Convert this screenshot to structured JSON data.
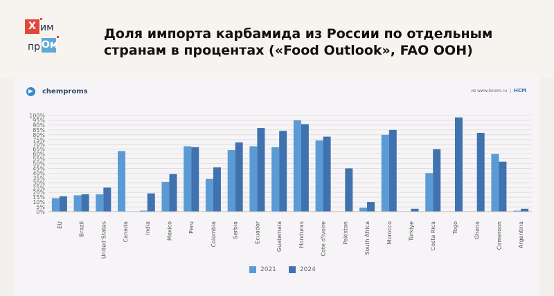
{
  "header": {
    "logo_line1": "Х",
    "logo_line1_rest": "им",
    "logo_line2_rest": "пр",
    "logo_line2": "Ом",
    "title": "Доля импорта карбамида из России по отдельным странам в процентах («Food Outlook», FAO ООН)"
  },
  "brand": {
    "name": "chemproms",
    "icon": "telegram-icon"
  },
  "source": {
    "site": "из www.iknom.ru",
    "sep": "|",
    "mark": "НСМ"
  },
  "colors": {
    "s2021": "#5b9bd5",
    "s2024": "#3f72ae",
    "accent": "#e3473b"
  },
  "chart_data": {
    "type": "bar",
    "categories": [
      "EU",
      "Brazil",
      "United States",
      "Canada",
      "India",
      "Mexico",
      "Peru",
      "Colombia",
      "Serbia",
      "Ecuador",
      "Guatemala",
      "Honduras",
      "Cote d'Ivoire",
      "Pakistan",
      "South Africa",
      "Morocco",
      "Türkiye",
      "Costa Rica",
      "Togo",
      "Ghana",
      "Cameroon",
      "Argentina"
    ],
    "series": [
      {
        "name": "2021",
        "values": [
          14,
          17,
          18,
          63,
          1,
          31,
          68,
          34,
          64,
          68,
          67,
          95,
          74,
          0,
          4,
          80,
          0,
          40,
          0,
          0,
          60,
          1
        ]
      },
      {
        "name": "2024",
        "values": [
          16,
          18,
          25,
          0,
          19,
          39,
          67,
          46,
          72,
          87,
          84,
          91,
          78,
          45,
          10,
          85,
          3,
          65,
          98,
          82,
          52,
          3
        ]
      }
    ],
    "ylim": [
      0,
      100
    ],
    "yticks": [
      "0%",
      "5%",
      "10%",
      "15%",
      "20%",
      "25%",
      "30%",
      "35%",
      "40%",
      "45%",
      "50%",
      "55%",
      "60%",
      "65%",
      "70%",
      "75%",
      "80%",
      "85%",
      "90%",
      "95%",
      "100%"
    ],
    "grid": true,
    "legend": "bottom-center"
  }
}
